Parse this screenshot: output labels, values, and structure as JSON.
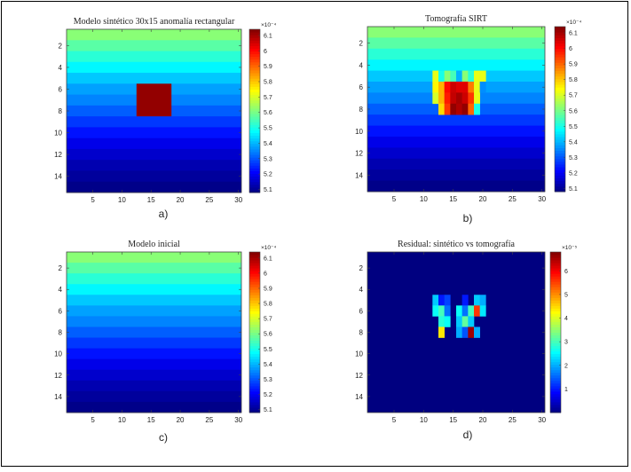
{
  "chart_data": [
    {
      "type": "heatmap",
      "title": "Modelo sintético 30x15 anomalía rectangular",
      "caption": "a)",
      "x_ticks": [
        "5",
        "10",
        "15",
        "20",
        "25",
        "30"
      ],
      "y_ticks": [
        "2",
        "4",
        "6",
        "8",
        "10",
        "12",
        "14"
      ],
      "xlim": [
        0.5,
        30.5
      ],
      "ylim": [
        0.5,
        15.5
      ],
      "y_reversed": true,
      "colorbar": {
        "exponent": "×10⁻⁴",
        "ticks": [
          "5.1",
          "5.2",
          "5.3",
          "5.4",
          "5.5",
          "5.6",
          "5.7",
          "5.8",
          "5.9",
          "6",
          "6.1"
        ],
        "range": [
          5.08,
          6.14
        ],
        "colormap": "jet"
      },
      "background_rows": [
        5.62,
        5.57,
        5.52,
        5.47,
        5.42,
        5.38,
        5.35,
        5.31,
        5.27,
        5.23,
        5.19,
        5.16,
        5.13,
        5.11,
        5.09
      ],
      "anomaly": {
        "x": [
          13,
          18
        ],
        "y": [
          6,
          8
        ],
        "value": 6.12
      }
    },
    {
      "type": "heatmap",
      "title": "Tomografía SIRT",
      "caption": "b)",
      "x_ticks": [
        "5",
        "10",
        "15",
        "20",
        "25",
        "30"
      ],
      "y_ticks": [
        "2",
        "4",
        "6",
        "8",
        "10",
        "12",
        "14"
      ],
      "xlim": [
        0.5,
        30.5
      ],
      "ylim": [
        0.5,
        15.5
      ],
      "y_reversed": true,
      "colorbar": {
        "exponent": "×10⁻⁴",
        "ticks": [
          "5.1",
          "5.2",
          "5.3",
          "5.4",
          "5.5",
          "5.6",
          "5.7",
          "5.8",
          "5.9",
          "6",
          "6.1"
        ],
        "range": [
          5.08,
          6.14
        ],
        "colormap": "jet"
      },
      "background_rows": [
        5.62,
        5.57,
        5.52,
        5.47,
        5.42,
        5.38,
        5.35,
        5.31,
        5.27,
        5.23,
        5.19,
        5.16,
        5.13,
        5.11,
        5.09
      ],
      "cells": [
        {
          "x": 12,
          "y": 5,
          "v": 5.72
        },
        {
          "x": 13,
          "y": 5,
          "v": 5.5
        },
        {
          "x": 14,
          "y": 5,
          "v": 5.62
        },
        {
          "x": 15,
          "y": 5,
          "v": 5.55
        },
        {
          "x": 16,
          "y": 5,
          "v": 5.4
        },
        {
          "x": 17,
          "y": 5,
          "v": 5.62
        },
        {
          "x": 18,
          "y": 5,
          "v": 5.52
        },
        {
          "x": 19,
          "y": 5,
          "v": 5.72
        },
        {
          "x": 20,
          "y": 5,
          "v": 5.72
        },
        {
          "x": 12,
          "y": 6,
          "v": 5.75
        },
        {
          "x": 13,
          "y": 6,
          "v": 5.82
        },
        {
          "x": 14,
          "y": 6,
          "v": 6.0
        },
        {
          "x": 15,
          "y": 6,
          "v": 6.06
        },
        {
          "x": 16,
          "y": 6,
          "v": 6.04
        },
        {
          "x": 17,
          "y": 6,
          "v": 6.04
        },
        {
          "x": 18,
          "y": 6,
          "v": 5.88
        },
        {
          "x": 19,
          "y": 6,
          "v": 5.72
        },
        {
          "x": 20,
          "y": 6,
          "v": 5.36
        },
        {
          "x": 12,
          "y": 7,
          "v": 5.7
        },
        {
          "x": 13,
          "y": 7,
          "v": 5.82
        },
        {
          "x": 14,
          "y": 7,
          "v": 5.98
        },
        {
          "x": 15,
          "y": 7,
          "v": 6.07
        },
        {
          "x": 16,
          "y": 7,
          "v": 6.1
        },
        {
          "x": 17,
          "y": 7,
          "v": 6.06
        },
        {
          "x": 18,
          "y": 7,
          "v": 5.95
        },
        {
          "x": 19,
          "y": 7,
          "v": 5.72
        },
        {
          "x": 13,
          "y": 8,
          "v": 5.78
        },
        {
          "x": 14,
          "y": 8,
          "v": 5.95
        },
        {
          "x": 15,
          "y": 8,
          "v": 6.12
        },
        {
          "x": 16,
          "y": 8,
          "v": 6.09
        },
        {
          "x": 17,
          "y": 8,
          "v": 6.12
        },
        {
          "x": 18,
          "y": 8,
          "v": 5.9
        },
        {
          "x": 19,
          "y": 8,
          "v": 5.5
        }
      ]
    },
    {
      "type": "heatmap",
      "title": "Modelo inicial",
      "caption": "c)",
      "x_ticks": [
        "5",
        "10",
        "15",
        "20",
        "25",
        "30"
      ],
      "y_ticks": [
        "2",
        "4",
        "6",
        "8",
        "10",
        "12",
        "14"
      ],
      "xlim": [
        0.5,
        30.5
      ],
      "ylim": [
        0.5,
        15.5
      ],
      "y_reversed": true,
      "colorbar": {
        "exponent": "×10⁻⁴",
        "ticks": [
          "5.1",
          "5.2",
          "5.3",
          "5.4",
          "5.5",
          "5.6",
          "5.7",
          "5.8",
          "5.9",
          "6",
          "6.1"
        ],
        "range": [
          5.08,
          6.14
        ],
        "colormap": "jet"
      },
      "background_rows": [
        5.62,
        5.57,
        5.52,
        5.47,
        5.42,
        5.38,
        5.35,
        5.31,
        5.27,
        5.23,
        5.19,
        5.16,
        5.13,
        5.11,
        5.09
      ]
    },
    {
      "type": "heatmap",
      "title": "Residual: sintético vs tomografía",
      "caption": "d)",
      "x_ticks": [
        "5",
        "10",
        "15",
        "20",
        "25",
        "30"
      ],
      "y_ticks": [
        "2",
        "4",
        "6",
        "8",
        "10",
        "12",
        "14"
      ],
      "xlim": [
        0.5,
        30.5
      ],
      "ylim": [
        0.5,
        15.5
      ],
      "y_reversed": true,
      "colorbar": {
        "exponent": "×10⁻⁵",
        "ticks": [
          "1",
          "2",
          "3",
          "4",
          "5",
          "6"
        ],
        "range": [
          0,
          6.8
        ],
        "colormap": "jet"
      },
      "background_value": 0,
      "cells": [
        {
          "x": 12,
          "y": 5,
          "v": 2.2
        },
        {
          "x": 13,
          "y": 5,
          "v": 1.0
        },
        {
          "x": 14,
          "y": 5,
          "v": 1.3
        },
        {
          "x": 17,
          "y": 5,
          "v": 1.0
        },
        {
          "x": 19,
          "y": 5,
          "v": 2.2
        },
        {
          "x": 20,
          "y": 5,
          "v": 2.0
        },
        {
          "x": 12,
          "y": 6,
          "v": 2.6
        },
        {
          "x": 13,
          "y": 6,
          "v": 3.0
        },
        {
          "x": 14,
          "y": 6,
          "v": 1.6
        },
        {
          "x": 16,
          "y": 6,
          "v": 2.6
        },
        {
          "x": 17,
          "y": 6,
          "v": 1.6
        },
        {
          "x": 18,
          "y": 6,
          "v": 3.0
        },
        {
          "x": 19,
          "y": 6,
          "v": 5.6
        },
        {
          "x": 20,
          "y": 6,
          "v": 2.4
        },
        {
          "x": 13,
          "y": 7,
          "v": 2.8
        },
        {
          "x": 14,
          "y": 7,
          "v": 2.6
        },
        {
          "x": 16,
          "y": 7,
          "v": 2.2
        },
        {
          "x": 17,
          "y": 7,
          "v": 3.2
        },
        {
          "x": 18,
          "y": 7,
          "v": 2.2
        },
        {
          "x": 13,
          "y": 8,
          "v": 4.4
        },
        {
          "x": 16,
          "y": 8,
          "v": 2.0
        },
        {
          "x": 17,
          "y": 8,
          "v": 1.4
        },
        {
          "x": 18,
          "y": 8,
          "v": 6.6
        },
        {
          "x": 19,
          "y": 8,
          "v": 2.0
        }
      ]
    }
  ]
}
